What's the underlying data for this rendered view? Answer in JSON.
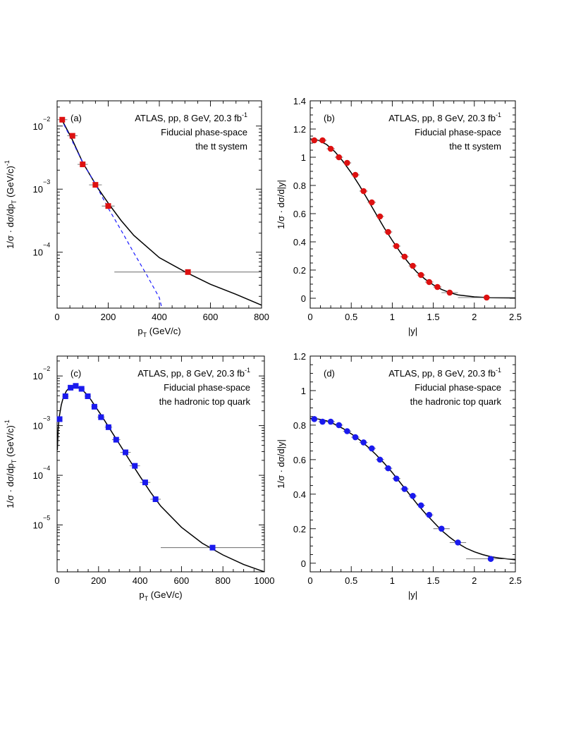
{
  "chart_data": [
    {
      "type": "scatter",
      "panel_label": "(a)",
      "annotation": [
        "ATLAS, pp, 8 GeV, 20.3 fb",
        "Fiducial phase-space",
        "the tt system"
      ],
      "annotation_sup": "-1",
      "xlabel": "p",
      "xlabel_sub": "T",
      "xlabel_tail": " (GeV/c)",
      "ylabel_parts": [
        "1/σ · dσ/dp",
        "T",
        " (GeV/c)",
        "-1"
      ],
      "x_scale": "linear",
      "y_scale": "log",
      "xlim": [
        0,
        800
      ],
      "ylim": [
        1.3e-05,
        0.0251
      ],
      "xticks": [
        0,
        200,
        400,
        600,
        800
      ],
      "xtick_labels": [
        "0",
        "200",
        "400",
        "600",
        "800"
      ],
      "yticks": [
        0.01,
        0.001,
        0.0001
      ],
      "ytick_base": [
        "10",
        "10",
        "10"
      ],
      "ytick_exp": [
        "−2",
        "−3",
        "−4"
      ],
      "marker": "square",
      "marker_color": "#dd1111",
      "points": [
        {
          "x": 20,
          "y": 0.0126,
          "xerr": 20
        },
        {
          "x": 60,
          "y": 0.007,
          "xerr": 20
        },
        {
          "x": 100,
          "y": 0.00247,
          "xerr": 20
        },
        {
          "x": 150,
          "y": 0.00117,
          "xerr": 25
        },
        {
          "x": 200,
          "y": 0.00054,
          "xerr": 25
        },
        {
          "x": 512,
          "y": 4.85e-05,
          "xerr": 288
        }
      ],
      "curves": [
        {
          "style": "solid",
          "color": "#000000",
          "x": [
            15,
            25,
            40,
            60,
            80,
            100,
            130,
            160,
            200,
            250,
            300,
            400,
            500,
            600,
            700,
            800
          ],
          "y": [
            0.0131,
            0.0112,
            0.0086,
            0.006,
            0.004,
            0.00265,
            0.00165,
            0.00103,
            0.0006,
            0.00032,
            0.000185,
            8.2e-05,
            4.9e-05,
            3.1e-05,
            2.15e-05,
            1.45e-05
          ]
        },
        {
          "style": "dashed",
          "color": "#1a1aff",
          "x": [
            15,
            50,
            100,
            150,
            200,
            250,
            300,
            350,
            400,
            410
          ],
          "y": [
            0.0131,
            0.0069,
            0.00265,
            0.0012,
            0.0005,
            0.000225,
            9.8e-05,
            4.4e-05,
            1.9e-05,
            1.3e-05
          ]
        }
      ]
    },
    {
      "type": "scatter",
      "panel_label": "(b)",
      "annotation": [
        "ATLAS, pp, 8 GeV, 20.3 fb",
        "Fiducial phase-space",
        "the tt system"
      ],
      "annotation_sup": "-1",
      "xlabel": "|y|",
      "ylabel_parts": [
        "1/σ · dσ/d|y|"
      ],
      "x_scale": "linear",
      "y_scale": "linear",
      "xlim": [
        0,
        2.5
      ],
      "ylim": [
        -0.07,
        1.4
      ],
      "xticks": [
        0,
        0.5,
        1,
        1.5,
        2,
        2.5
      ],
      "xtick_labels": [
        "0",
        "0.5",
        "1",
        "1.5",
        "2",
        "2.5"
      ],
      "yticks": [
        0,
        0.2,
        0.4,
        0.6,
        0.8,
        1,
        1.2,
        1.4
      ],
      "ytick_labels": [
        "0",
        "0.2",
        "0.4",
        "0.6",
        "0.8",
        "1",
        "1.2",
        "1.4"
      ],
      "marker": "circle",
      "marker_color": "#dd1111",
      "points": [
        {
          "x": 0.05,
          "y": 1.12,
          "xerr": 0.05
        },
        {
          "x": 0.15,
          "y": 1.12,
          "xerr": 0.05
        },
        {
          "x": 0.25,
          "y": 1.06,
          "xerr": 0.05
        },
        {
          "x": 0.35,
          "y": 1.0,
          "xerr": 0.05
        },
        {
          "x": 0.45,
          "y": 0.96,
          "xerr": 0.05
        },
        {
          "x": 0.55,
          "y": 0.875,
          "xerr": 0.05
        },
        {
          "x": 0.65,
          "y": 0.76,
          "xerr": 0.05
        },
        {
          "x": 0.75,
          "y": 0.68,
          "xerr": 0.05
        },
        {
          "x": 0.85,
          "y": 0.58,
          "xerr": 0.05
        },
        {
          "x": 0.95,
          "y": 0.47,
          "xerr": 0.05
        },
        {
          "x": 1.05,
          "y": 0.37,
          "xerr": 0.05
        },
        {
          "x": 1.15,
          "y": 0.295,
          "xerr": 0.05
        },
        {
          "x": 1.25,
          "y": 0.23,
          "xerr": 0.05
        },
        {
          "x": 1.35,
          "y": 0.165,
          "xerr": 0.05
        },
        {
          "x": 1.45,
          "y": 0.115,
          "xerr": 0.05
        },
        {
          "x": 1.55,
          "y": 0.08,
          "xerr": 0.05
        },
        {
          "x": 1.7,
          "y": 0.04,
          "xerr": 0.1
        },
        {
          "x": 2.15,
          "y": 0.005,
          "xerr": 0.35
        }
      ],
      "curves": [
        {
          "style": "solid",
          "color": "#000000",
          "x": [
            0.0,
            0.1,
            0.2,
            0.3,
            0.4,
            0.5,
            0.6,
            0.7,
            0.8,
            0.9,
            1.0,
            1.1,
            1.2,
            1.3,
            1.4,
            1.5,
            1.6,
            1.7,
            1.8,
            2.0,
            2.2,
            2.5
          ],
          "y": [
            1.13,
            1.12,
            1.09,
            1.04,
            0.97,
            0.89,
            0.8,
            0.7,
            0.6,
            0.5,
            0.41,
            0.325,
            0.25,
            0.185,
            0.135,
            0.095,
            0.063,
            0.04,
            0.024,
            0.01,
            0.004,
            0.002
          ]
        }
      ]
    },
    {
      "type": "scatter",
      "panel_label": "(c)",
      "annotation": [
        "ATLAS, pp, 8 GeV, 20.3 fb",
        "Fiducial phase-space",
        "the hadronic top quark"
      ],
      "annotation_sup": "-1",
      "xlabel": "p",
      "xlabel_sub": "T",
      "xlabel_tail": " (GeV/c)",
      "ylabel_parts": [
        "1/σ · dσ/dp",
        "T",
        " (GeV/c)",
        "-1"
      ],
      "x_scale": "linear",
      "y_scale": "log",
      "xlim": [
        0,
        1000
      ],
      "ylim": [
        1.14e-06,
        0.0251
      ],
      "xticks": [
        0,
        200,
        400,
        600,
        800,
        1000
      ],
      "xtick_labels": [
        "0",
        "200",
        "400",
        "600",
        "800",
        "1000"
      ],
      "yticks": [
        0.01,
        0.001,
        0.0001,
        1e-05
      ],
      "ytick_base": [
        "10",
        "10",
        "10",
        "10"
      ],
      "ytick_exp": [
        "−2",
        "−3",
        "−4",
        "−5"
      ],
      "marker": "square",
      "marker_color": "#1a1aee",
      "points": [
        {
          "x": 12,
          "y": 0.00135,
          "xerr": 12
        },
        {
          "x": 40,
          "y": 0.0039,
          "xerr": 15
        },
        {
          "x": 65,
          "y": 0.0058,
          "xerr": 12
        },
        {
          "x": 90,
          "y": 0.0063,
          "xerr": 12
        },
        {
          "x": 118,
          "y": 0.0055,
          "xerr": 14
        },
        {
          "x": 148,
          "y": 0.0039,
          "xerr": 15
        },
        {
          "x": 180,
          "y": 0.0024,
          "xerr": 15
        },
        {
          "x": 212,
          "y": 0.00148,
          "xerr": 17
        },
        {
          "x": 248,
          "y": 0.00093,
          "xerr": 18
        },
        {
          "x": 285,
          "y": 0.00052,
          "xerr": 20
        },
        {
          "x": 330,
          "y": 0.00029,
          "xerr": 25
        },
        {
          "x": 375,
          "y": 0.000155,
          "xerr": 25
        },
        {
          "x": 425,
          "y": 7.2e-05,
          "xerr": 25
        },
        {
          "x": 475,
          "y": 3.3e-05,
          "xerr": 25
        },
        {
          "x": 750,
          "y": 3.5e-06,
          "xerr": 250
        }
      ],
      "curves": [
        {
          "style": "solid",
          "color": "#000000",
          "x": [
            1,
            5,
            10,
            20,
            30,
            45,
            60,
            80,
            100,
            120,
            150,
            180,
            210,
            250,
            300,
            350,
            400,
            450,
            500,
            600,
            700,
            800,
            900,
            1000
          ],
          "y": [
            0.00032,
            0.00085,
            0.00145,
            0.0026,
            0.0037,
            0.005,
            0.0058,
            0.0062,
            0.006,
            0.0053,
            0.004,
            0.0026,
            0.0017,
            0.00092,
            0.00043,
            0.0002,
            9.5e-05,
            4.6e-05,
            2.4e-05,
            9e-06,
            4.3e-06,
            2.5e-06,
            1.6e-06,
            1.14e-06
          ]
        }
      ]
    },
    {
      "type": "scatter",
      "panel_label": "(d)",
      "annotation": [
        "ATLAS, pp, 8 GeV, 20.3 fb",
        "Fiducial phase-space",
        "the hadronic top quark"
      ],
      "annotation_sup": "-1",
      "xlabel": "|y|",
      "ylabel_parts": [
        "1/σ · dσ/d|y|"
      ],
      "x_scale": "linear",
      "y_scale": "linear",
      "xlim": [
        0,
        2.5
      ],
      "ylim": [
        -0.05,
        1.2
      ],
      "xticks": [
        0,
        0.5,
        1,
        1.5,
        2,
        2.5
      ],
      "xtick_labels": [
        "0",
        "0.5",
        "1",
        "1.5",
        "2",
        "2.5"
      ],
      "yticks": [
        0,
        0.2,
        0.4,
        0.6,
        0.8,
        1,
        1.2
      ],
      "ytick_labels": [
        "0",
        "0.2",
        "0.4",
        "0.6",
        "0.8",
        "1",
        "1.2"
      ],
      "marker": "circle",
      "marker_color": "#1a1aee",
      "points": [
        {
          "x": 0.05,
          "y": 0.835,
          "xerr": 0.05
        },
        {
          "x": 0.15,
          "y": 0.82,
          "xerr": 0.05
        },
        {
          "x": 0.25,
          "y": 0.82,
          "xerr": 0.05
        },
        {
          "x": 0.35,
          "y": 0.8,
          "xerr": 0.05
        },
        {
          "x": 0.45,
          "y": 0.765,
          "xerr": 0.05
        },
        {
          "x": 0.55,
          "y": 0.73,
          "xerr": 0.05
        },
        {
          "x": 0.65,
          "y": 0.7,
          "xerr": 0.05
        },
        {
          "x": 0.75,
          "y": 0.665,
          "xerr": 0.05
        },
        {
          "x": 0.85,
          "y": 0.6,
          "xerr": 0.05
        },
        {
          "x": 0.95,
          "y": 0.55,
          "xerr": 0.05
        },
        {
          "x": 1.05,
          "y": 0.49,
          "xerr": 0.05
        },
        {
          "x": 1.15,
          "y": 0.43,
          "xerr": 0.05
        },
        {
          "x": 1.25,
          "y": 0.39,
          "xerr": 0.05
        },
        {
          "x": 1.35,
          "y": 0.335,
          "xerr": 0.05
        },
        {
          "x": 1.45,
          "y": 0.28,
          "xerr": 0.05
        },
        {
          "x": 1.6,
          "y": 0.2,
          "xerr": 0.1
        },
        {
          "x": 1.8,
          "y": 0.12,
          "xerr": 0.1
        },
        {
          "x": 2.2,
          "y": 0.025,
          "xerr": 0.3
        }
      ],
      "curves": [
        {
          "style": "solid",
          "color": "#000000",
          "x": [
            0.0,
            0.1,
            0.2,
            0.3,
            0.4,
            0.5,
            0.6,
            0.7,
            0.8,
            0.9,
            1.0,
            1.1,
            1.2,
            1.3,
            1.4,
            1.5,
            1.6,
            1.7,
            1.8,
            1.9,
            2.0,
            2.1,
            2.2,
            2.3,
            2.5
          ],
          "y": [
            0.84,
            0.835,
            0.825,
            0.805,
            0.78,
            0.75,
            0.715,
            0.675,
            0.63,
            0.58,
            0.525,
            0.465,
            0.405,
            0.345,
            0.29,
            0.24,
            0.19,
            0.15,
            0.115,
            0.087,
            0.066,
            0.05,
            0.038,
            0.03,
            0.02
          ]
        }
      ]
    }
  ]
}
